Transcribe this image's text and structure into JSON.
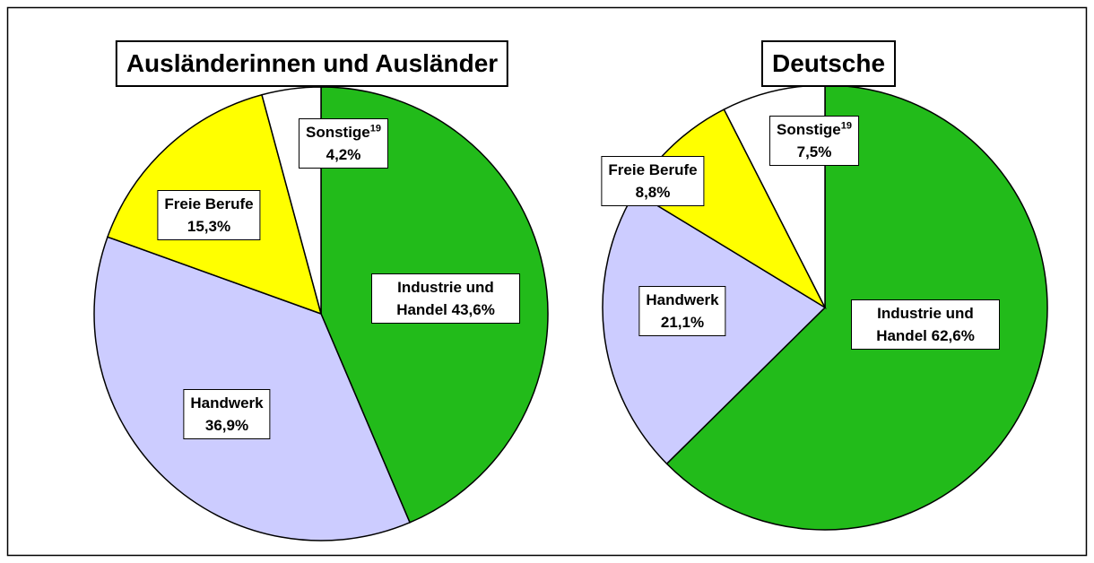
{
  "chart_data": [
    {
      "type": "pie",
      "title": "Ausländerinnen und Ausländer",
      "categories": [
        "Industrie und Handel",
        "Handwerk",
        "Freie Berufe",
        "Sonstige"
      ],
      "footnote_marks": [
        null,
        null,
        null,
        "19"
      ],
      "values": [
        43.6,
        36.9,
        15.3,
        4.2
      ],
      "value_labels": [
        "43,6%",
        "36,9%",
        "15,3%",
        "4,2%"
      ],
      "colors": [
        "#22bb1a",
        "#ccccff",
        "#ffff00",
        "#ffffff"
      ]
    },
    {
      "type": "pie",
      "title": "Deutsche",
      "categories": [
        "Industrie und Handel",
        "Handwerk",
        "Freie Berufe",
        "Sonstige"
      ],
      "footnote_marks": [
        null,
        null,
        null,
        "19"
      ],
      "values": [
        62.6,
        21.1,
        8.8,
        7.5
      ],
      "value_labels": [
        "62,6%",
        "21,1%",
        "8,8%",
        "7,5%"
      ],
      "colors": [
        "#22bb1a",
        "#ccccff",
        "#ffff00",
        "#ffffff"
      ]
    }
  ]
}
